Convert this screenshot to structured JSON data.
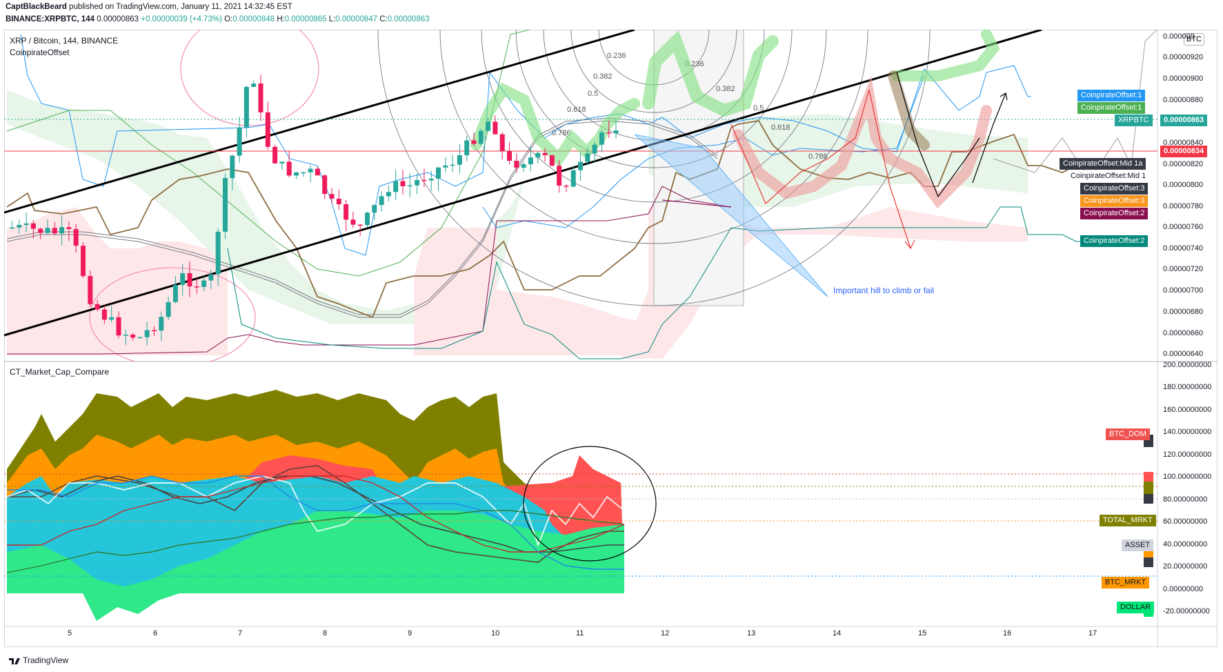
{
  "header": {
    "author": "CaptBlackBeard",
    "published": "published on TradingView.com, January 11, 2021 14:32:45 EST",
    "symbol": "BINANCE:XRPBTC, 144",
    "last": "0.00000863",
    "change": "+0.00000039 (+4.73%)",
    "o_label": "O:",
    "o_val": "0.00000848",
    "h_label": "H:",
    "h_val": "0.00000865",
    "l_label": "L:",
    "l_val": "0.00000847",
    "c_label": "C:",
    "c_val": "0.00000863"
  },
  "main_pane": {
    "title": "XRP / Bitcoin, 144, BINANCE",
    "indicator": "CoinpirateOffset",
    "currency_button": "BTC",
    "annotation": "Important hill to climb or fail",
    "fib_labels": [
      "0.236",
      "0.382",
      "0.5",
      "0.618",
      "0.786"
    ],
    "price_axis": [
      "0.00000920",
      "0.00000900",
      "0.00000880",
      "0.00000840",
      "0.00000820",
      "0.00000800",
      "0.00000780",
      "0.00000760",
      "0.00000740",
      "0.00000720",
      "0.00000700",
      "0.00000680",
      "0.00000660",
      "0.00000640"
    ],
    "price_axis_top": "0.000009",
    "price_tags": [
      {
        "label": "CoinpirateOffset:1",
        "color": "#2196f3"
      },
      {
        "label": "CoinpirateOffset:1",
        "color": "#4caf50"
      },
      {
        "label": "XRPBTC",
        "value": "0.00000863",
        "color": "#26a69a"
      },
      {
        "value": "0.00000834",
        "color": "#f23645"
      },
      {
        "label": "CoinpirateOffset:Mid 1a",
        "color": "#363a45"
      },
      {
        "label": "CoinpirateOffset:Mid 1",
        "color": "#ffffff"
      },
      {
        "label": "CoinpirateOffset:3",
        "color": "#363a45"
      },
      {
        "label": "CoinpirateOffset:3",
        "color": "#f7931a"
      },
      {
        "label": "CoinpirateOffset:2",
        "color": "#880e4f"
      },
      {
        "label": "CoinpirateOffset:2",
        "color": "#00897b"
      }
    ]
  },
  "lower_pane": {
    "title": "CT_Market_Cap_Compare",
    "axis": [
      "200.00000000",
      "180.00000000",
      "160.00000000",
      "140.00000000",
      "120.00000000",
      "100.00000000",
      "80.00000000",
      "60.00000000",
      "40.00000000",
      "20.00000000",
      "0.00000000",
      "-20.00000000"
    ],
    "tags": [
      {
        "label": "BTC_DOM",
        "color": "#ef5350"
      },
      {
        "label": "TOTAL_MRKT",
        "color": "#808000"
      },
      {
        "label": "ASSET",
        "color": "#d1d4dc"
      },
      {
        "label": "BTC_MRKT",
        "color": "#ff9800"
      },
      {
        "label": "DOLLAR",
        "color": "#00e676"
      }
    ]
  },
  "time_axis": [
    "5",
    "6",
    "7",
    "8",
    "9",
    "10",
    "11",
    "12",
    "13",
    "14",
    "15",
    "16",
    "17"
  ],
  "footer": {
    "brand": "TradingView"
  },
  "colors": {
    "up": "#26a69a",
    "down": "#ef1b5b",
    "trend": "#000000",
    "fill_green": "#e8f5e9",
    "fill_red": "#fde7e9"
  }
}
